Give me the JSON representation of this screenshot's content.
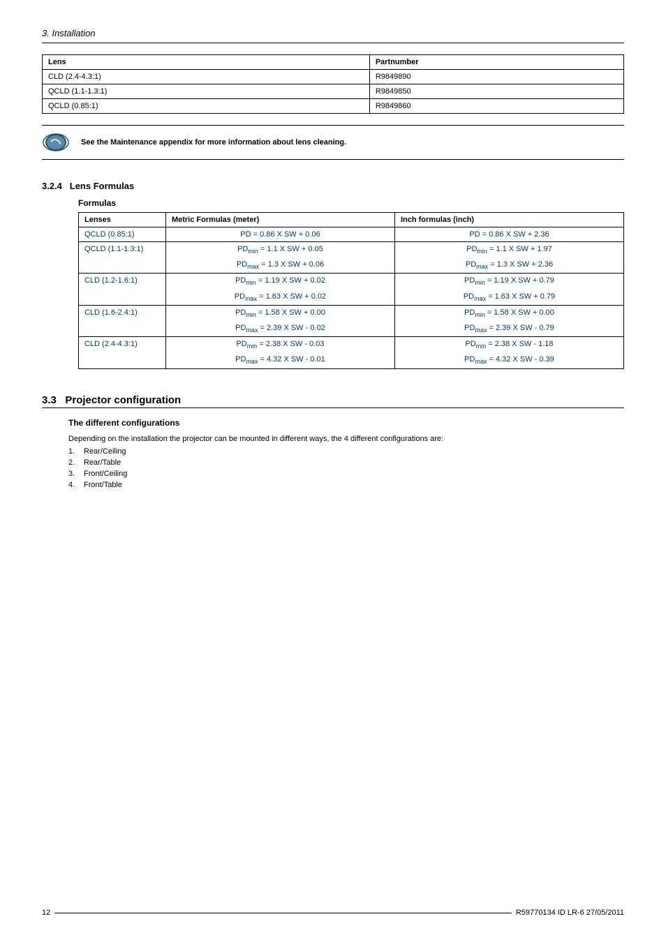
{
  "header": {
    "title": "3. Installation"
  },
  "lens_table": {
    "headers": [
      "Lens",
      "Partnumber"
    ],
    "rows": [
      [
        "CLD (2.4-4.3:1)",
        "R9849890"
      ],
      [
        "QCLD (1.1-1.3:1)",
        "R9849850"
      ],
      [
        "QCLD (0.85:1)",
        "R9849860"
      ]
    ]
  },
  "info_box": {
    "text": "See the Maintenance appendix for more information about lens cleaning."
  },
  "section_324": {
    "number": "3.2.4",
    "title": "Lens Formulas",
    "sub_heading": "Formulas",
    "headers": [
      "Lenses",
      "Metric Formulas (meter)",
      "Inch formulas (inch)"
    ],
    "styling": {
      "formula_color": "#003964"
    },
    "rows": [
      {
        "lens": "QCLD (0.85:1)",
        "metric": [
          "PD = 0.86 X SW + 0.06"
        ],
        "inch": [
          "PD = 0.86 X SW + 2.36"
        ]
      },
      {
        "lens": "QCLD (1.1-1.3:1)",
        "metric": [
          "PD<sub>min</sub> = 1.1 X SW + 0.05",
          "PD<sub>max</sub> = 1.3 X SW + 0.06"
        ],
        "inch": [
          "PD<sub>min</sub> = 1.1 X SW + 1.97",
          "PD<sub>max</sub> = 1.3 X SW + 2.36"
        ]
      },
      {
        "lens": "CLD (1.2-1.6:1)",
        "metric": [
          "PD<sub>min</sub> = 1.19 X SW + 0.02",
          "PD<sub>max</sub> = 1.63 X SW + 0.02"
        ],
        "inch": [
          "PD<sub>min</sub> = 1.19 X SW + 0.79",
          "PD<sub>max</sub> = 1.63 X SW + 0.79"
        ]
      },
      {
        "lens": "CLD (1.6-2.4:1)",
        "metric": [
          "PD<sub>min</sub> = 1.58 X SW + 0.00",
          "PD<sub>max</sub> = 2.39 X SW - 0.02"
        ],
        "inch": [
          "PD<sub>min</sub> = 1.58 X SW + 0.00",
          "PD<sub>max</sub> = 2.39 X SW - 0.79"
        ]
      },
      {
        "lens": "CLD (2.4-4.3:1)",
        "metric": [
          "PD<sub>min</sub> = 2.38 X SW - 0.03",
          "PD<sub>max</sub> = 4.32 X SW - 0.01"
        ],
        "inch": [
          "PD<sub>min</sub> = 2.38 X SW - 1.18",
          "PD<sub>max</sub> = 4.32 X SW - 0.39"
        ]
      }
    ]
  },
  "section_33": {
    "number": "3.3",
    "title": "Projector configuration",
    "sub_heading": "The different configurations",
    "text": "Depending on the installation the projector can be mounted in different ways, the 4 different configurations are:",
    "items": [
      "Rear/Ceiling",
      "Rear/Table",
      "Front/Ceiling",
      "Front/Table"
    ]
  },
  "footer": {
    "page": "12",
    "doc": "R59770134  ID LR-6  27/05/2011"
  }
}
